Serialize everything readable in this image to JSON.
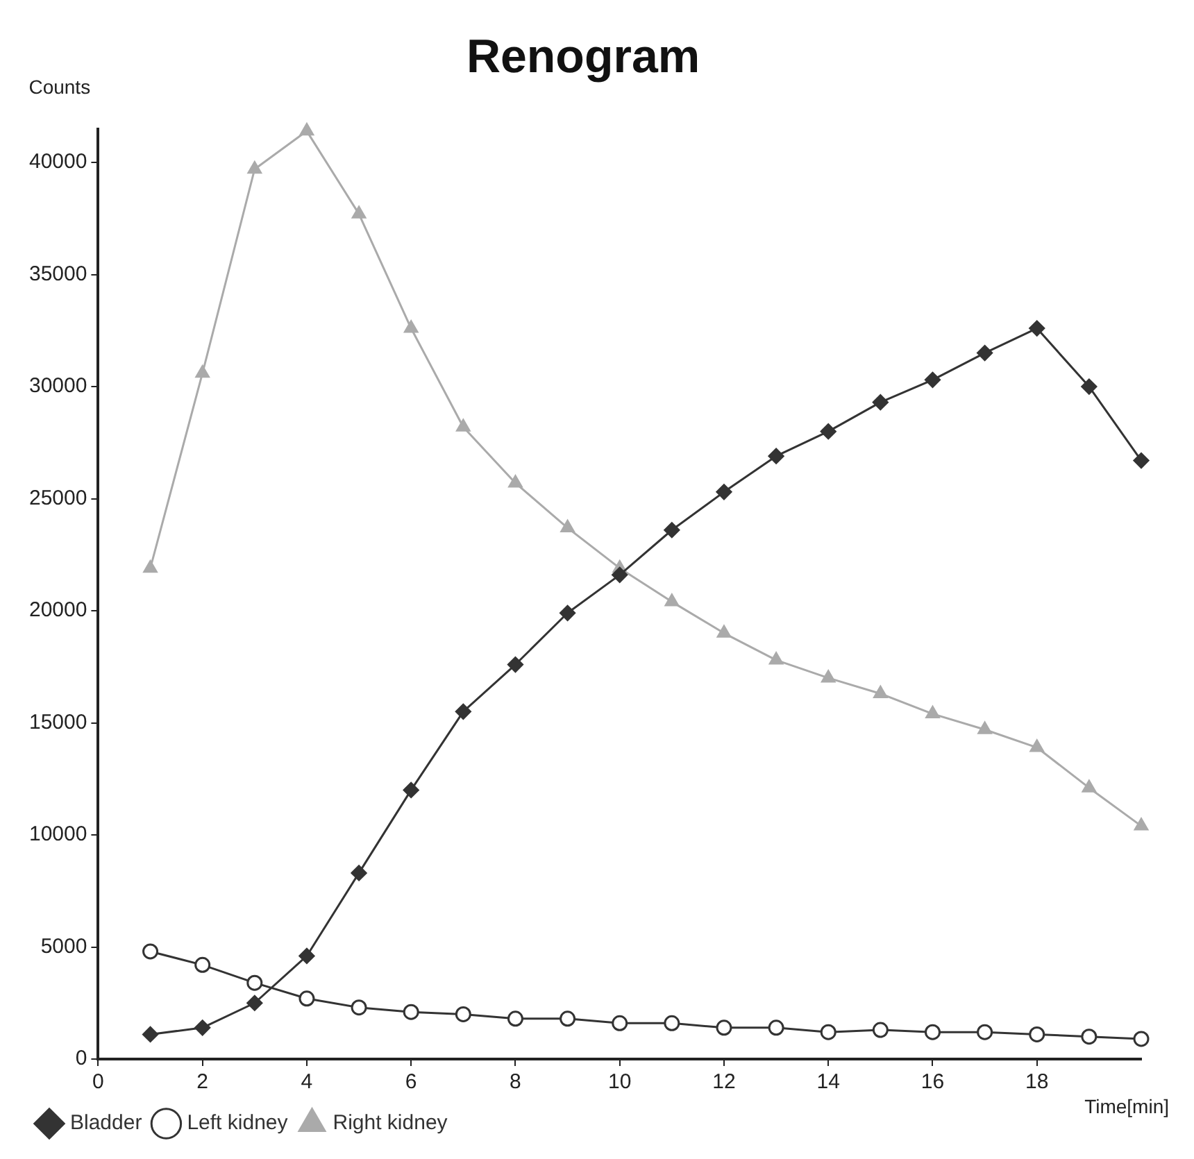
{
  "chart_data": {
    "type": "line",
    "title": "Renogram",
    "ylabel": "Counts",
    "xlabel": "Time[min]",
    "x": [
      1,
      2,
      3,
      4,
      5,
      6,
      7,
      8,
      9,
      10,
      11,
      12,
      13,
      14,
      15,
      16,
      17,
      18,
      19,
      20
    ],
    "series": [
      {
        "name": "Bladder",
        "color": "#333333",
        "marker": "diamond",
        "values": [
          1100,
          1400,
          2500,
          4600,
          8300,
          12000,
          15500,
          17600,
          19900,
          21600,
          23600,
          25300,
          26900,
          28000,
          29300,
          30300,
          31500,
          32600,
          30000,
          26700
        ]
      },
      {
        "name": "Left kidney",
        "color": "#333333",
        "marker": "circle",
        "values": [
          4800,
          4200,
          3400,
          2700,
          2300,
          2100,
          2000,
          1800,
          1800,
          1600,
          1600,
          1400,
          1400,
          1200,
          1300,
          1200,
          1200,
          1100,
          1000,
          900
        ]
      },
      {
        "name": "Right kidney",
        "color": "#aaaaaa",
        "marker": "triangle",
        "values": [
          21900,
          30600,
          39700,
          41400,
          37700,
          32600,
          28200,
          25700,
          23700,
          21900,
          20400,
          19000,
          17800,
          17000,
          16300,
          15400,
          14700,
          13900,
          12100,
          10400
        ]
      }
    ],
    "xlim": [
      0,
      20
    ],
    "xticks": [
      0,
      2,
      4,
      6,
      8,
      10,
      12,
      14,
      16,
      18
    ],
    "ylim": [
      0,
      41500
    ],
    "yticks": [
      0,
      5000,
      10000,
      15000,
      20000,
      25000,
      30000,
      35000,
      40000
    ],
    "grid": false,
    "legend": "bottom left",
    "line_style": "solid"
  }
}
